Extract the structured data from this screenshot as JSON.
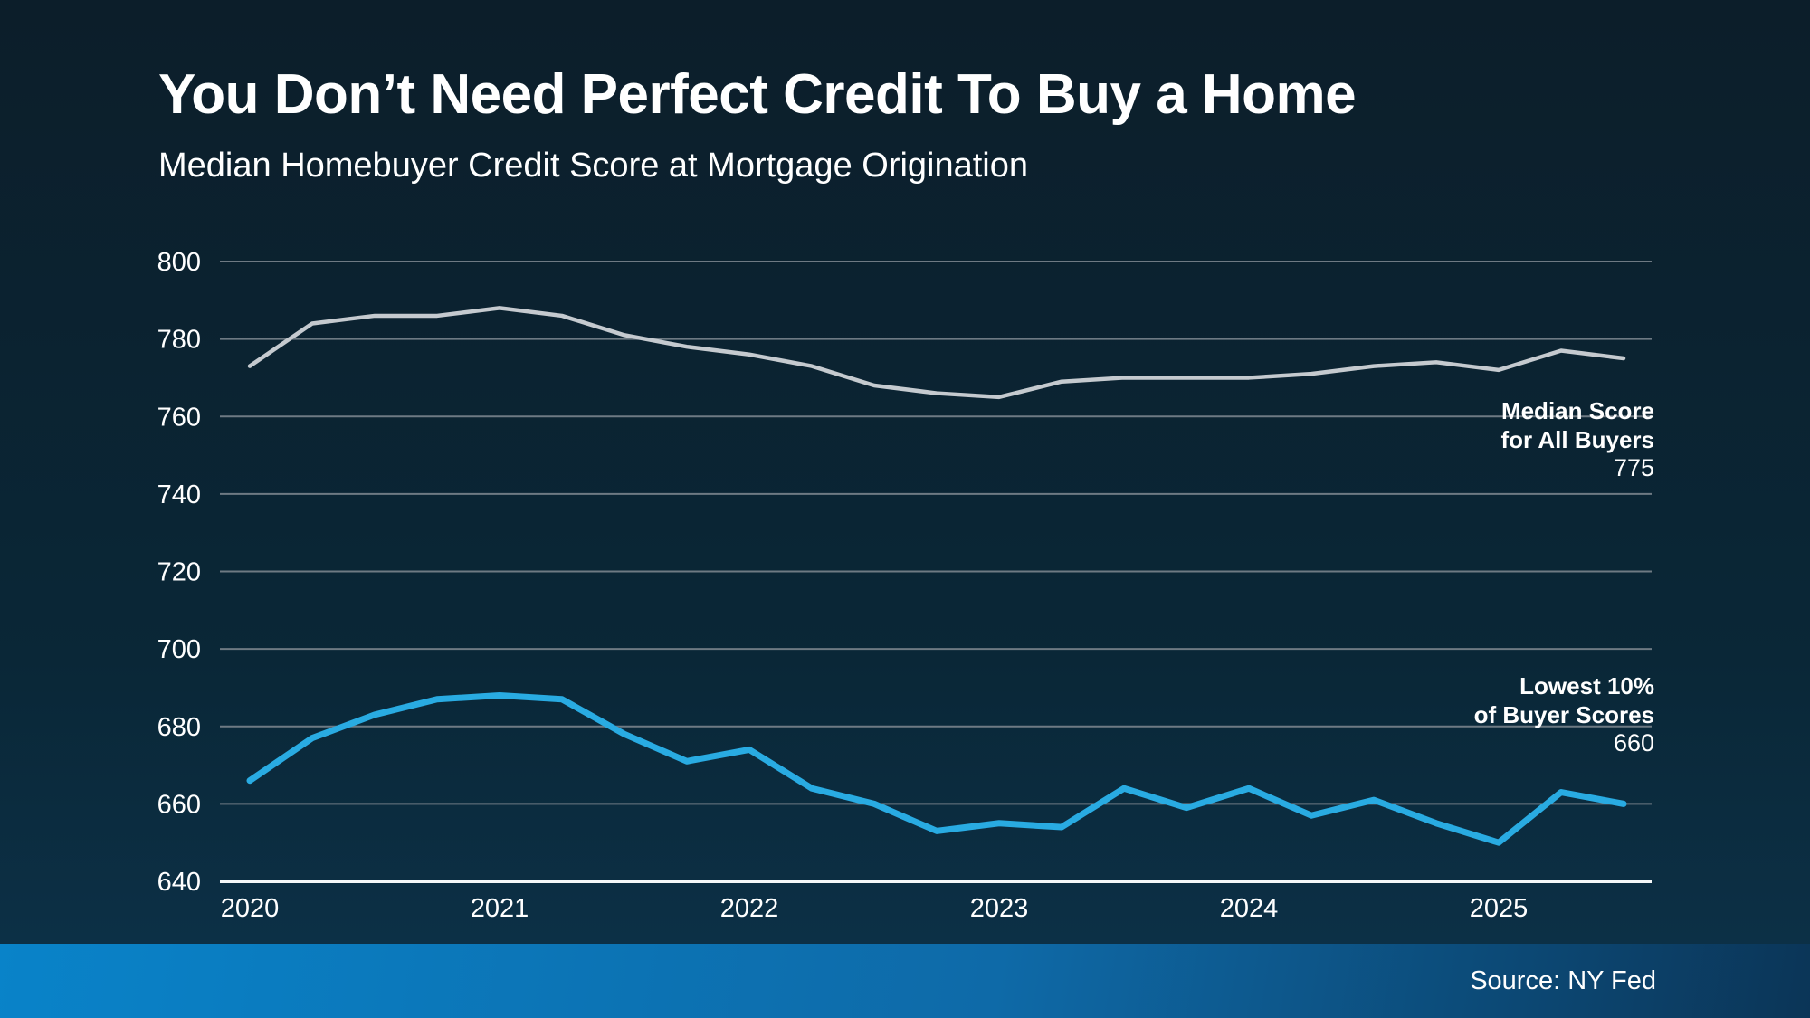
{
  "header": {
    "title": "You Don’t Need Perfect Credit To Buy a Home",
    "subtitle": "Median Homebuyer Credit Score at Mortgage Origination"
  },
  "footer": {
    "source": "Source: NY Fed"
  },
  "colors": {
    "background_top": "#0c1e2a",
    "background_mid": "#0a2737",
    "background_bottom": "#0c3046",
    "footer_left": "#0983c9",
    "footer_mid": "#0e6aa8",
    "footer_right": "#0b3557",
    "grid": "#6e7a83",
    "baseline": "#f5f7f8",
    "axis_text": "#ffffff",
    "median_line": "#c5cacf",
    "lowest_line": "#29abe2"
  },
  "chart_data": {
    "type": "line",
    "title": "You Don’t Need Perfect Credit To Buy a Home",
    "subtitle": "Median Homebuyer Credit Score at Mortgage Origination",
    "x_unit": "quarterly",
    "x_start": "2020 Q1",
    "x_end": "2025 Q3",
    "x_tick_labels": [
      "2020",
      "2021",
      "2022",
      "2023",
      "2024",
      "2025"
    ],
    "y_ticks": [
      800,
      780,
      760,
      740,
      720,
      700,
      680,
      660,
      640
    ],
    "ylim": [
      640,
      805
    ],
    "grid": "horizontal",
    "legend_position": "inline-annotations",
    "series": [
      {
        "name": "Median Score for All Buyers",
        "color": "#c5cacf",
        "values": [
          773,
          784,
          786,
          786,
          788,
          786,
          781,
          778,
          776,
          773,
          768,
          766,
          765,
          769,
          770,
          770,
          770,
          771,
          773,
          774,
          772,
          777,
          775
        ]
      },
      {
        "name": "Lowest 10% of Buyer Scores",
        "color": "#29abe2",
        "values": [
          666,
          677,
          683,
          687,
          688,
          687,
          678,
          671,
          674,
          664,
          660,
          653,
          655,
          654,
          664,
          659,
          664,
          657,
          661,
          655,
          650,
          663,
          660
        ]
      }
    ],
    "annotations": [
      {
        "line1": "Median Score",
        "line2": "for All Buyers",
        "value": "775"
      },
      {
        "line1": "Lowest 10%",
        "line2": "of Buyer Scores",
        "value": "660"
      }
    ]
  }
}
